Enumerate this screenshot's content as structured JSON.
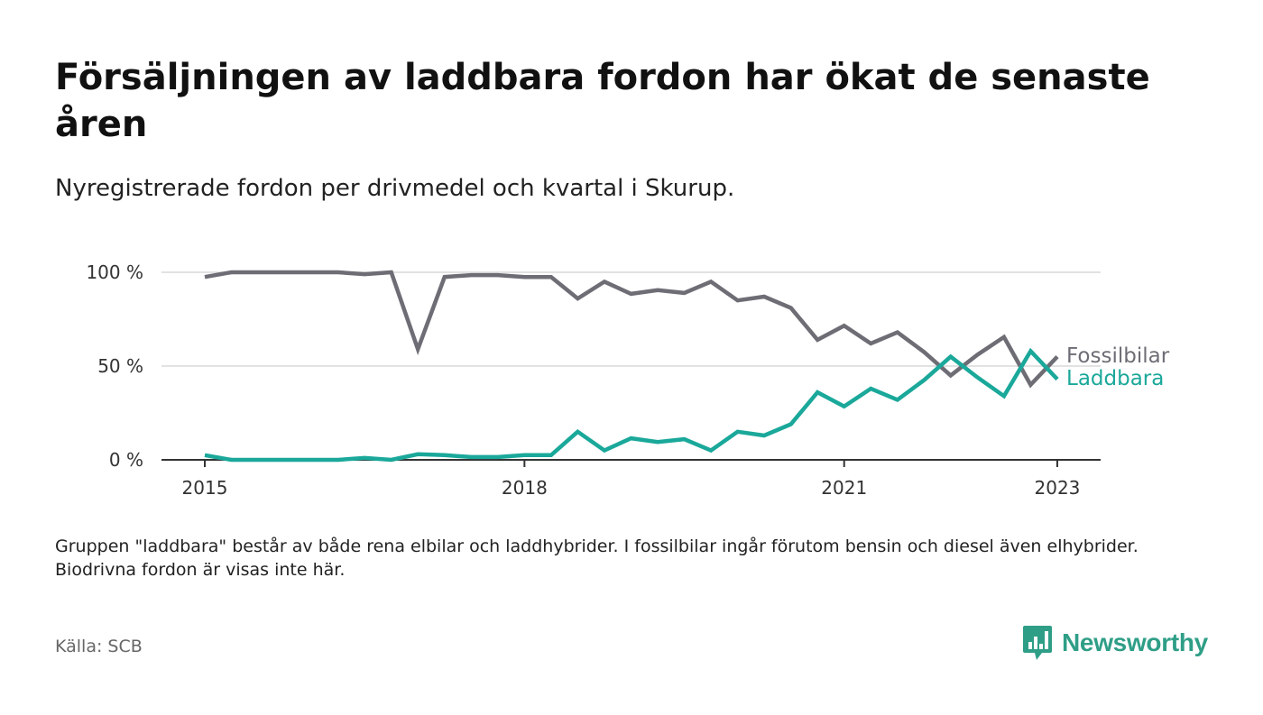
{
  "title": "Försäljningen av laddbara fordon har ökat de senaste åren",
  "subtitle": "Nyregistrerade fordon per drivmedel och kvartal i Skurup.",
  "note": "Gruppen \"laddbara\" består av både rena elbilar och laddhybrider. I fossilbilar ingår förutom bensin och diesel även elhybrider. Biodrivna fordon är visas inte här.",
  "source": "Källa: SCB",
  "logo_text": "Newsworthy",
  "colors": {
    "fossil": "#6e6d75",
    "laddbara": "#1aa89a",
    "grid": "#d8d8d8",
    "axis": "#333333",
    "logo": "#2f9e87"
  },
  "chart_data": {
    "type": "line",
    "x_start": "2015 Q1",
    "x_end": "2023 Q1",
    "ylim": [
      0,
      100
    ],
    "y_ticks": [
      {
        "value": 0,
        "label": "0 %"
      },
      {
        "value": 50,
        "label": "50 %"
      },
      {
        "value": 100,
        "label": "100 %"
      }
    ],
    "x_ticks": [
      {
        "quarter": 0,
        "label": "2015"
      },
      {
        "quarter": 12,
        "label": "2018"
      },
      {
        "quarter": 24,
        "label": "2021"
      },
      {
        "quarter": 32,
        "label": "2023"
      }
    ],
    "grid": true,
    "legend": "right-end labels",
    "series": [
      {
        "name": "Fossilbilar",
        "color": "#6e6d75",
        "values": [
          97.5,
          100,
          100,
          100,
          100,
          100,
          99,
          100,
          59,
          97.5,
          98.5,
          98.5,
          97.5,
          97.5,
          86,
          95,
          88.5,
          90.5,
          89,
          95,
          85,
          87,
          81,
          64,
          71.5,
          62,
          68,
          57.5,
          45,
          56,
          65.5,
          40,
          55
        ]
      },
      {
        "name": "Laddbara",
        "color": "#1aa89a",
        "values": [
          2.5,
          0,
          0,
          0,
          0,
          0,
          1,
          0,
          3,
          2.5,
          1.5,
          1.5,
          2.5,
          2.5,
          15,
          5,
          11.5,
          9.5,
          11,
          5,
          15,
          13,
          19,
          36,
          28.5,
          38,
          32,
          42.5,
          55,
          44,
          34,
          58,
          43
        ]
      }
    ]
  }
}
